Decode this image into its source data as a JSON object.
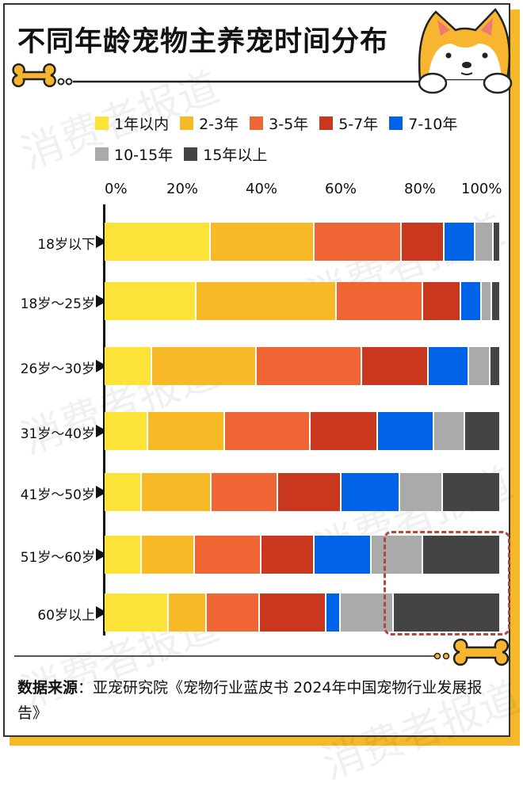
{
  "title": "不同年龄宠物主养宠时间分布",
  "watermark": "消费者报道",
  "chart_data": {
    "type": "bar",
    "orientation": "horizontal",
    "stacked": true,
    "title": "不同年龄宠物主养宠时间分布",
    "categories": [
      "18岁以下",
      "18岁～25岁",
      "26岁～30岁",
      "31岁～40岁",
      "41岁～50岁",
      "51岁～60岁",
      "60岁以上"
    ],
    "xlim": [
      0,
      100
    ],
    "x_ticks": [
      "0%",
      "20%",
      "40%",
      "60%",
      "80%",
      "100%"
    ],
    "legend_position": "top",
    "grid": false,
    "series": [
      {
        "name": "1年以内",
        "color": "#fde338",
        "values": [
          26.8,
          23.3,
          11.9,
          11.0,
          9.4,
          9.4,
          16.1
        ]
      },
      {
        "name": "2-3年",
        "color": "#f8b927",
        "values": [
          26.3,
          35.4,
          26.5,
          19.3,
          17.5,
          13.3,
          9.7
        ]
      },
      {
        "name": "3-5年",
        "color": "#ef6534",
        "values": [
          22.0,
          21.7,
          26.6,
          21.7,
          16.8,
          16.9,
          13.3
        ]
      },
      {
        "name": "5-7年",
        "color": "#c9381e",
        "values": [
          10.8,
          9.7,
          16.8,
          16.9,
          16.0,
          13.4,
          16.9
        ]
      },
      {
        "name": "7-10年",
        "color": "#0063e8",
        "values": [
          7.7,
          5.1,
          10.2,
          14.3,
          14.8,
          14.3,
          3.6
        ]
      },
      {
        "name": "10-15年",
        "color": "#aaaaaa",
        "values": [
          4.7,
          2.6,
          5.3,
          7.7,
          10.9,
          13.0,
          13.3
        ]
      },
      {
        "name": "15年以上",
        "color": "#444444",
        "values": [
          1.8,
          2.3,
          2.7,
          9.0,
          14.6,
          19.7,
          27.0
        ]
      }
    ],
    "annotation": "dashed highlight around 10-15年 and 15年以上 for 51岁～60岁 and 60岁以上"
  },
  "source": {
    "label": "数据来源",
    "text": "：亚宠研究院《宠物行业蓝皮书 2024年中国宠物行业发展报告》"
  }
}
